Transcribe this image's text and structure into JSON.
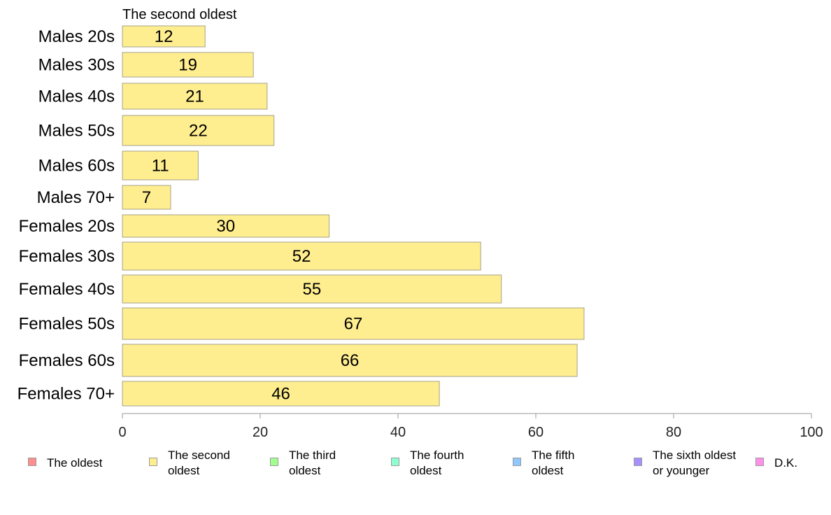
{
  "chart_data": {
    "type": "bar",
    "orientation": "horizontal",
    "title": "The second oldest",
    "categories": [
      "Males 20s",
      "Males 30s",
      "Males 40s",
      "Males 50s",
      "Males 60s",
      "Males 70+",
      "Females 20s",
      "Females 30s",
      "Females 40s",
      "Females 50s",
      "Females 60s",
      "Females 70+"
    ],
    "series": [
      {
        "name": "The second oldest",
        "color": "#ffee8f",
        "values": [
          12,
          19,
          21,
          22,
          11,
          7,
          30,
          52,
          55,
          67,
          66,
          46
        ]
      }
    ],
    "xlim": [
      0,
      100
    ],
    "xticks": [
      0,
      20,
      40,
      60,
      80,
      100
    ],
    "xticklabels": [
      "0",
      "20",
      "40",
      "60",
      "80",
      "100"
    ],
    "grid": false,
    "legend_position": "bottom"
  },
  "legend": [
    {
      "label": "The oldest",
      "color": "#ff8f8f"
    },
    {
      "label": "The second\noldest",
      "color": "#ffee8f"
    },
    {
      "label": "The third\noldest",
      "color": "#a0ff8f"
    },
    {
      "label": "The fourth\noldest",
      "color": "#8fffd0"
    },
    {
      "label": "The fifth\noldest",
      "color": "#8fc8ff"
    },
    {
      "label": "The sixth oldest\nor younger",
      "color": "#a88fff"
    },
    {
      "label": "D.K.",
      "color": "#ff8fe8"
    }
  ]
}
